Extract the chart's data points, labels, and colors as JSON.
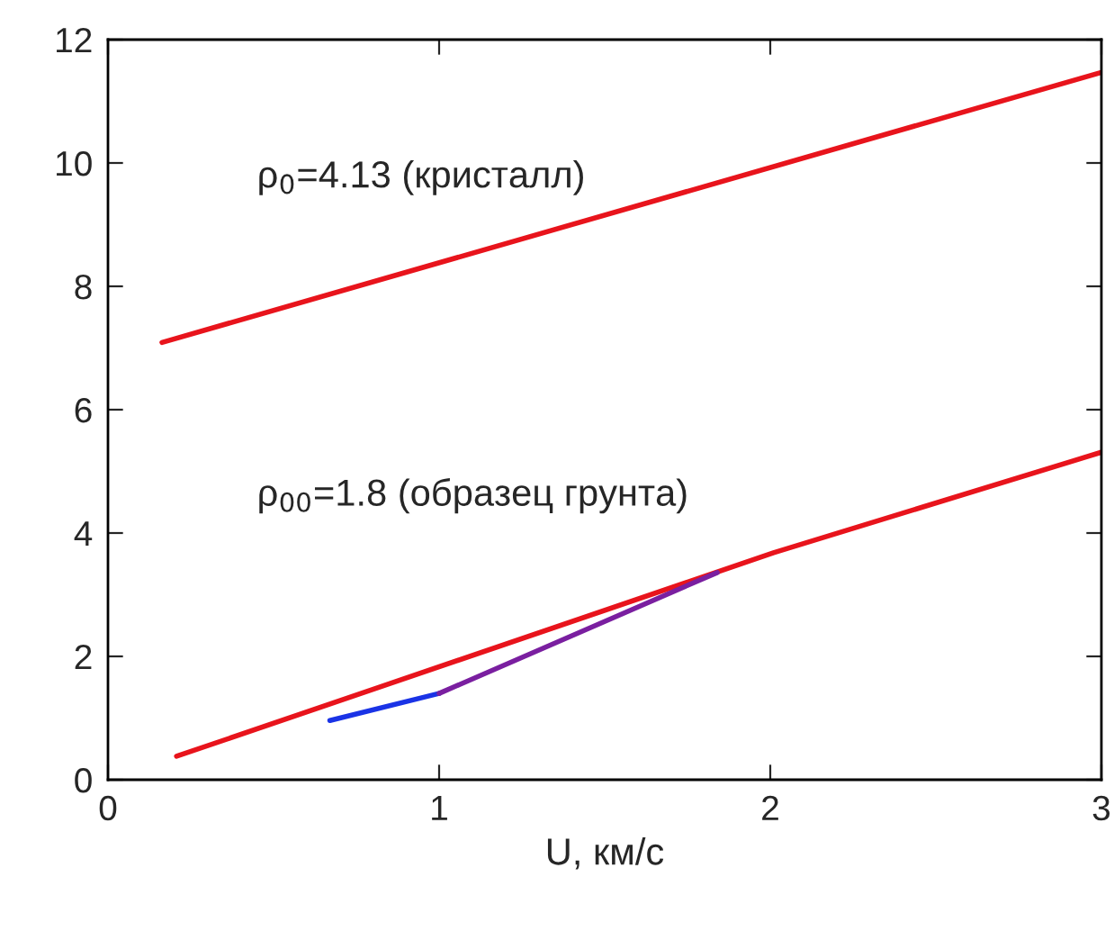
{
  "chart_data": {
    "type": "line",
    "xlabel": "U, км/с",
    "xlim": [
      0,
      3
    ],
    "ylim": [
      0,
      12
    ],
    "xticks": [
      0,
      1,
      2,
      3
    ],
    "yticks": [
      0,
      2,
      4,
      6,
      8,
      10,
      12
    ],
    "grid": false,
    "legend": false,
    "marker": "none",
    "line_style": "solid",
    "series": [
      {
        "color": "#e8141c",
        "x": [
          0.163,
          3.0
        ],
        "values": [
          7.09,
          11.47
        ]
      },
      {
        "color": "#e8141c",
        "x": [
          0.207,
          2.01,
          3.0
        ],
        "values": [
          0.38,
          3.68,
          5.31
        ]
      },
      {
        "color": "#1a33e6",
        "x": [
          0.67,
          1.0
        ],
        "values": [
          0.96,
          1.4
        ]
      },
      {
        "color": "#7a1fa0",
        "x": [
          1.0,
          1.84
        ],
        "values": [
          1.4,
          3.36
        ]
      }
    ],
    "annotations": [
      "ρ$_{0}$=4.13 (кристалл)",
      "ρ$_{00}$=1.8 (образец грунта)"
    ]
  }
}
